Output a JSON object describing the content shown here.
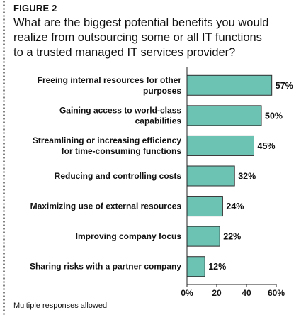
{
  "figure_label": "FIGURE 2",
  "question_lines": [
    "What are the biggest potential benefits you would",
    "realize from outsourcing some or all IT functions",
    "to a trusted managed IT services provider?"
  ],
  "footnote": "Multiple responses allowed",
  "colors": {
    "bar": "#6cc3b4",
    "bar_stroke": "#2f2f2f"
  },
  "chart_data": {
    "type": "bar",
    "orientation": "horizontal",
    "categories": [
      [
        "Freeing internal resources for other",
        "purposes"
      ],
      [
        "Gaining access to world-class",
        "capabilities"
      ],
      [
        "Streamlining or increasing efficiency",
        "for time-consuming functions"
      ],
      [
        "Reducing and controlling costs"
      ],
      [
        "Maximizing use of external resources"
      ],
      [
        "Improving company focus"
      ],
      [
        "Sharing risks with a partner company"
      ]
    ],
    "values": [
      57,
      50,
      45,
      32,
      24,
      22,
      12
    ],
    "value_labels": [
      "57%",
      "50%",
      "45%",
      "32%",
      "24%",
      "22%",
      "12%"
    ],
    "xlim": [
      0,
      60
    ],
    "xticks": [
      0,
      20,
      40,
      60
    ],
    "xtick_labels": [
      "0%",
      "20",
      "40",
      "60%"
    ],
    "grid": false
  }
}
